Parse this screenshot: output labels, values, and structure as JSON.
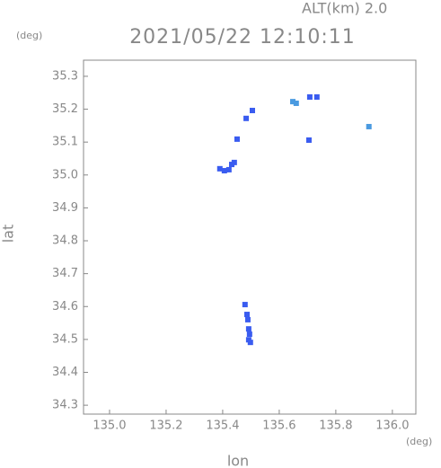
{
  "chart_data": {
    "type": "scatter",
    "title": "2021/05/22 12:10:11",
    "annotation": "ALT(km) 2.0",
    "y_unit": "(deg)",
    "x_unit": "(deg)",
    "x_label": "lon",
    "y_label": "lat",
    "xlim": [
      134.908,
      136.083
    ],
    "ylim": [
      34.273,
      35.349
    ],
    "xticks": [
      {
        "value": 135.0,
        "label": "135.0"
      },
      135.2,
      135.4,
      135.6,
      135.8,
      {
        "value": 136.0,
        "label": "136.0"
      }
    ],
    "yticks": [
      34.3,
      34.4,
      34.5,
      34.6,
      34.7,
      34.8,
      34.9,
      {
        "value": 35.0,
        "label": "35.0"
      },
      35.1,
      35.2,
      35.3
    ],
    "series": [
      {
        "color": "#3a5cf0",
        "x": [
          135.483,
          135.505,
          135.451,
          135.708,
          135.733,
          135.705,
          135.39,
          135.406,
          135.422,
          135.432,
          135.441,
          135.479,
          135.486,
          135.489,
          135.492,
          135.495,
          135.492,
          135.498
        ],
        "y": [
          35.172,
          35.196,
          35.109,
          35.237,
          35.237,
          35.106,
          35.019,
          35.013,
          35.016,
          35.032,
          35.038,
          34.606,
          34.576,
          34.56,
          34.532,
          34.516,
          34.499,
          34.491
        ]
      },
      {
        "color": "#4a9ae0",
        "x": [
          135.648,
          135.66,
          135.917
        ],
        "y": [
          35.223,
          35.218,
          35.147
        ]
      }
    ]
  }
}
